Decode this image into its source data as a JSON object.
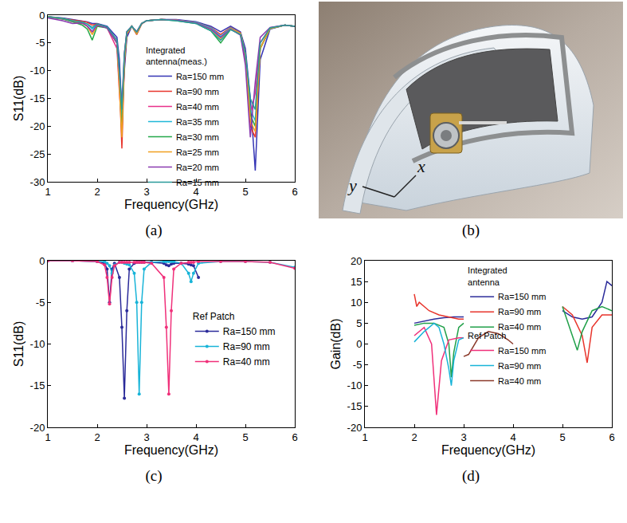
{
  "chart_data": [
    {
      "type": "line",
      "title": "(a)",
      "x_label": "Frequency(GHz)",
      "y_label": "S11(dB)",
      "xlim": [
        1,
        6
      ],
      "xticks": [
        1,
        2,
        3,
        4,
        5,
        6
      ],
      "ylim": [
        -30,
        0
      ],
      "yticks": [
        -30,
        -25,
        -20,
        -15,
        -10,
        -5,
        0
      ],
      "grid": false,
      "legend": "center",
      "legend_title": "Integrated antenna(meas.)",
      "x": [
        1,
        1.3,
        1.5,
        1.7,
        1.8,
        1.9,
        2.0,
        2.2,
        2.4,
        2.45,
        2.5,
        2.55,
        2.6,
        2.7,
        2.8,
        2.9,
        3.0,
        3.3,
        3.6,
        4.0,
        4.3,
        4.5,
        4.7,
        4.9,
        5.0,
        5.1,
        5.2,
        5.3,
        5.5,
        5.8,
        6.0
      ],
      "series": [
        {
          "name": "Ra=150 mm",
          "color": "#3535b5",
          "values": [
            -0.3,
            -0.5,
            -0.8,
            -1,
            -1.2,
            -1.5,
            -1.5,
            -2,
            -4,
            -8,
            -18,
            -10,
            -4,
            -2,
            -3,
            -1.5,
            -1,
            -0.8,
            -0.8,
            -1.2,
            -2,
            -3,
            -2,
            -3,
            -6,
            -15,
            -28,
            -8,
            -2.5,
            -1.8,
            -2
          ]
        },
        {
          "name": "Ra=90 mm",
          "color": "#e8352c",
          "values": [
            -0.3,
            -0.6,
            -0.9,
            -1.1,
            -1.3,
            -1.8,
            -1.6,
            -2.2,
            -5,
            -12,
            -24,
            -9,
            -3.5,
            -2,
            -3.5,
            -1.6,
            -1,
            -0.8,
            -0.9,
            -1.3,
            -2.2,
            -3.5,
            -2.2,
            -3.2,
            -7,
            -20,
            -22,
            -6,
            -2.4,
            -1.8,
            -2
          ]
        },
        {
          "name": "Ra=40 mm",
          "color": "#e8308a",
          "values": [
            -0.4,
            -0.7,
            -1.2,
            -1.5,
            -2,
            -3,
            -1.8,
            -2.3,
            -6,
            -14,
            -20,
            -7,
            -3,
            -2,
            -3,
            -1.5,
            -1,
            -0.8,
            -0.9,
            -1.4,
            -2.5,
            -4,
            -2.5,
            -3.5,
            -8,
            -18,
            -14,
            -5,
            -2.3,
            -1.8,
            -2
          ]
        },
        {
          "name": "Ra=35 mm",
          "color": "#20b8d8",
          "values": [
            -0.3,
            -0.6,
            -1,
            -1.3,
            -1.6,
            -2.5,
            -1.7,
            -2.2,
            -5,
            -11,
            -19,
            -8,
            -3.2,
            -2,
            -3.2,
            -1.5,
            -1,
            -0.8,
            -0.9,
            -1.3,
            -2.3,
            -3.8,
            -2.3,
            -3.3,
            -7,
            -17,
            -19,
            -6,
            -2.4,
            -1.8,
            -2
          ]
        },
        {
          "name": "Ra=30 mm",
          "color": "#25a84a",
          "values": [
            -0.3,
            -0.7,
            -1.2,
            -1.8,
            -2.5,
            -4.5,
            -2,
            -2.3,
            -5,
            -12,
            -21,
            -8,
            -3.3,
            -2,
            -3.3,
            -1.5,
            -1,
            -0.8,
            -1,
            -1.5,
            -2.8,
            -5,
            -2.6,
            -3.4,
            -7,
            -18,
            -20,
            -6,
            -2.4,
            -1.8,
            -2
          ]
        },
        {
          "name": "Ra=25 mm",
          "color": "#f0a020",
          "values": [
            -0.3,
            -0.6,
            -1,
            -1.4,
            -2,
            -3.5,
            -1.8,
            -2.2,
            -5,
            -13,
            -22,
            -8,
            -3.3,
            -2,
            -3.3,
            -1.5,
            -1,
            -0.8,
            -0.9,
            -1.4,
            -2.5,
            -4.2,
            -2.4,
            -3.3,
            -7,
            -19,
            -21,
            -6,
            -2.4,
            -1.8,
            -2
          ]
        },
        {
          "name": "Ra=20 mm",
          "color": "#8a3ab0",
          "values": [
            -0.5,
            -1,
            -1.5,
            -1.4,
            -2,
            -3,
            -1.8,
            -2.3,
            -5,
            -10,
            -16,
            -7,
            -3,
            -2,
            -3,
            -1.5,
            -1,
            -0.8,
            -0.9,
            -1.4,
            -2.5,
            -4,
            -2.5,
            -3.6,
            -9,
            -22,
            -12,
            -4,
            -2.2,
            -1.8,
            -2
          ]
        },
        {
          "name": "Ra=15 mm",
          "color": "#2a9a9a",
          "values": [
            -0.3,
            -0.6,
            -1,
            -1.3,
            -1.6,
            -2.2,
            -1.6,
            -2.1,
            -4.5,
            -10,
            -17,
            -7,
            -3,
            -2,
            -3,
            -1.5,
            -1,
            -0.8,
            -1,
            -1.5,
            -2.8,
            -4.5,
            -2.6,
            -3.5,
            -7,
            -15,
            -17,
            -5,
            -2.3,
            -1.8,
            -2
          ]
        }
      ]
    },
    {
      "type": "line",
      "title": "(c)",
      "x_label": "Frequency(GHz)",
      "y_label": "S11(dB)",
      "xlim": [
        1,
        6
      ],
      "xticks": [
        1,
        2,
        3,
        4,
        5,
        6
      ],
      "ylim": [
        -20,
        0
      ],
      "yticks": [
        -20,
        -15,
        -10,
        -5,
        0
      ],
      "grid": false,
      "legend": "right",
      "legend_title": "Ref Patch",
      "x": [
        1,
        1.5,
        2.0,
        2.15,
        2.2,
        2.25,
        2.3,
        2.35,
        2.45,
        2.5,
        2.55,
        2.6,
        2.65,
        2.75,
        2.8,
        2.85,
        2.9,
        2.95,
        3.1,
        3.35,
        3.4,
        3.45,
        3.5,
        3.55,
        3.7,
        3.85,
        3.9,
        3.95,
        4.05,
        4.5,
        5,
        5.5,
        6
      ],
      "series": [
        {
          "name": "Ra=150 mm",
          "color": "#2b2b9a",
          "marker": "circle",
          "values": [
            0,
            0,
            -0.1,
            -0.3,
            -1,
            -5,
            -1,
            -0.3,
            -2,
            -8,
            -16.5,
            -6,
            -1,
            -0.3,
            -0.2,
            -0.2,
            -0.2,
            -0.2,
            -0.2,
            -0.3,
            -0.5,
            -0.6,
            -0.4,
            -0.3,
            -0.3,
            -0.4,
            -0.5,
            -0.6,
            -2,
            null,
            null,
            null,
            null
          ]
        },
        {
          "name": "Ra=90 mm",
          "color": "#18b4d8",
          "marker": "circle",
          "values": [
            0,
            0,
            -0.1,
            -0.1,
            -0.3,
            -0.6,
            -1.5,
            -0.5,
            -0.2,
            -0.2,
            -0.3,
            -0.4,
            -0.5,
            -1.5,
            -5,
            -16,
            -5,
            -1,
            -0.2,
            -0.1,
            -0.1,
            -0.1,
            -0.1,
            -0.1,
            -0.3,
            -1.5,
            -2.5,
            -1.5,
            -0.3,
            -0.1,
            -0.1,
            -0.2,
            -0.8
          ]
        },
        {
          "name": "Ra=40 mm",
          "color": "#f0307a",
          "marker": "circle",
          "values": [
            0,
            0,
            -0.1,
            -0.5,
            -2,
            -5.2,
            -2,
            -0.6,
            -0.2,
            -0.2,
            -0.2,
            -0.2,
            -0.2,
            -0.2,
            -0.2,
            -0.2,
            -0.2,
            -0.2,
            -0.3,
            -2,
            -8,
            -16,
            -6,
            -1,
            -0.3,
            -0.2,
            -0.2,
            -0.2,
            -0.1,
            -0.1,
            -0.1,
            -0.2,
            -0.9
          ]
        }
      ]
    },
    {
      "type": "line",
      "title": "(d)",
      "x_label": "Frequency(GHz)",
      "y_label": "Gain(dB)",
      "xlim": [
        1,
        6
      ],
      "xticks": [
        1,
        2,
        3,
        4,
        5,
        6
      ],
      "ylim": [
        -20,
        20
      ],
      "yticks": [
        -20,
        -15,
        -10,
        -5,
        0,
        5,
        10,
        15,
        20
      ],
      "grid": false,
      "legend": "center",
      "groups": [
        {
          "name": "Integrated antenna",
          "series": [
            {
              "name": "Ra=150 mm",
              "color": "#2b2b9a",
              "x": [
                2,
                2.2,
                2.4,
                2.6,
                2.8,
                3.0,
                4.0,
                5.0,
                5.2,
                5.4,
                5.6,
                5.8,
                5.9,
                6.0
              ],
              "values": [
                5,
                5.5,
                6,
                6.3,
                6.5,
                6.5,
                null,
                8,
                6.5,
                6,
                6.5,
                10,
                15,
                14
              ]
            },
            {
              "name": "Ra=90 mm",
              "color": "#e8352c",
              "x": [
                2.0,
                2.05,
                2.1,
                2.3,
                2.5,
                2.7,
                2.9,
                3.0,
                4.0,
                5.0,
                5.2,
                5.4,
                5.5,
                5.6,
                5.8,
                6.0
              ],
              "values": [
                12,
                9,
                10,
                8,
                7,
                6.5,
                6,
                6,
                null,
                9,
                7,
                2,
                -4.5,
                4,
                7,
                7
              ]
            },
            {
              "name": "Ra=40 mm",
              "color": "#21a049",
              "x": [
                2,
                2.2,
                2.4,
                2.6,
                2.7,
                2.75,
                2.8,
                2.9,
                3.0,
                4.0,
                5.0,
                5.2,
                5.3,
                5.4,
                5.6,
                5.8,
                6.0
              ],
              "values": [
                4.5,
                5,
                5,
                4,
                0,
                -8,
                -2,
                4,
                5,
                null,
                9,
                2,
                -1.5,
                3,
                8,
                9,
                8
              ]
            }
          ]
        },
        {
          "name": "Ref Patch",
          "series": [
            {
              "name": "Ra=150 mm",
              "color": "#f0307a",
              "x": [
                2,
                2.2,
                2.35,
                2.45,
                2.55,
                2.7,
                2.9,
                3.0
              ],
              "values": [
                2,
                4,
                0,
                -17,
                -4,
                1,
                1.5,
                1.5
              ]
            },
            {
              "name": "Ra=90 mm",
              "color": "#18b4d8",
              "x": [
                2,
                2.2,
                2.4,
                2.5,
                2.6,
                2.7,
                2.75,
                2.8,
                2.9,
                3.0
              ],
              "values": [
                0.5,
                3,
                5,
                4,
                0,
                -6,
                -10,
                -4,
                1,
                1.5
              ]
            },
            {
              "name": "Ra=40 mm",
              "color": "#8b3a2a",
              "x": [
                3.0,
                3.1,
                3.3,
                3.5,
                3.7,
                3.9,
                4.0
              ],
              "values": [
                -3,
                -2.5,
                1.5,
                3,
                2.5,
                1,
                0
              ]
            }
          ]
        }
      ]
    }
  ],
  "photo": {
    "caption": "(b)",
    "axis_labels": [
      "y",
      "x"
    ]
  }
}
